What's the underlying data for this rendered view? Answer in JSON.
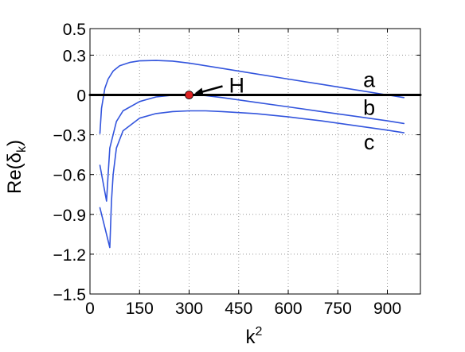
{
  "chart_data": {
    "type": "line",
    "xlabel": "k",
    "xlabel_sup": "2",
    "ylabel": "Re(δ",
    "ylabel_sub": "k",
    "ylabel_close": ")",
    "xlim": [
      0,
      1000
    ],
    "ylim": [
      -1.5,
      0.5
    ],
    "xticks": [
      0,
      150,
      300,
      450,
      600,
      750,
      900
    ],
    "xtick_labels": [
      "0",
      "150",
      "300",
      "450",
      "600",
      "750",
      "900"
    ],
    "yticks": [
      0.5,
      0.3,
      0,
      -0.3,
      -0.6,
      -0.9,
      -1.2,
      -1.5
    ],
    "ytick_labels": [
      "0.5",
      "0.3",
      "0",
      "−0.3",
      "−0.6",
      "−0.9",
      "−1.2",
      "−1.5"
    ],
    "grid": true,
    "series": [
      {
        "label": "a",
        "color": "#3355dd",
        "x": [
          30,
          35,
          45,
          55,
          70,
          90,
          120,
          150,
          200,
          250,
          300,
          400,
          500,
          600,
          700,
          800,
          900,
          950
        ],
        "y": [
          -0.29,
          -0.1,
          0.05,
          0.12,
          0.18,
          0.22,
          0.245,
          0.257,
          0.26,
          0.255,
          0.24,
          0.2,
          0.16,
          0.12,
          0.08,
          0.04,
          0.0,
          -0.02
        ]
      },
      {
        "label": "b",
        "color": "#3355dd",
        "x": [
          30,
          50,
          55,
          60,
          80,
          100,
          150,
          200,
          250,
          300,
          350,
          400,
          500,
          600,
          700,
          800,
          900,
          950
        ],
        "y": [
          -0.53,
          -0.8,
          -0.6,
          -0.4,
          -0.2,
          -0.12,
          -0.05,
          -0.015,
          -0.002,
          0.0,
          -0.005,
          -0.02,
          -0.055,
          -0.09,
          -0.125,
          -0.16,
          -0.195,
          -0.215
        ]
      },
      {
        "label": "c",
        "color": "#3355dd",
        "x": [
          30,
          60,
          65,
          70,
          80,
          100,
          150,
          200,
          250,
          300,
          350,
          400,
          500,
          600,
          700,
          800,
          900,
          950
        ],
        "y": [
          -0.85,
          -1.15,
          -0.8,
          -0.6,
          -0.4,
          -0.27,
          -0.175,
          -0.14,
          -0.125,
          -0.12,
          -0.12,
          -0.125,
          -0.14,
          -0.165,
          -0.195,
          -0.23,
          -0.265,
          -0.285
        ]
      },
      {
        "label": "",
        "color": "#000000",
        "x": [
          0,
          1000
        ],
        "y": [
          0,
          0
        ]
      }
    ],
    "point": {
      "label": "H",
      "x": 300,
      "y": 0,
      "color": "#dd2222"
    },
    "curve_labels": [
      {
        "text": "a",
        "x": 845,
        "y": 0.12
      },
      {
        "text": "b",
        "x": 845,
        "y": -0.09
      },
      {
        "text": "c",
        "x": 845,
        "y": -0.35
      }
    ]
  }
}
